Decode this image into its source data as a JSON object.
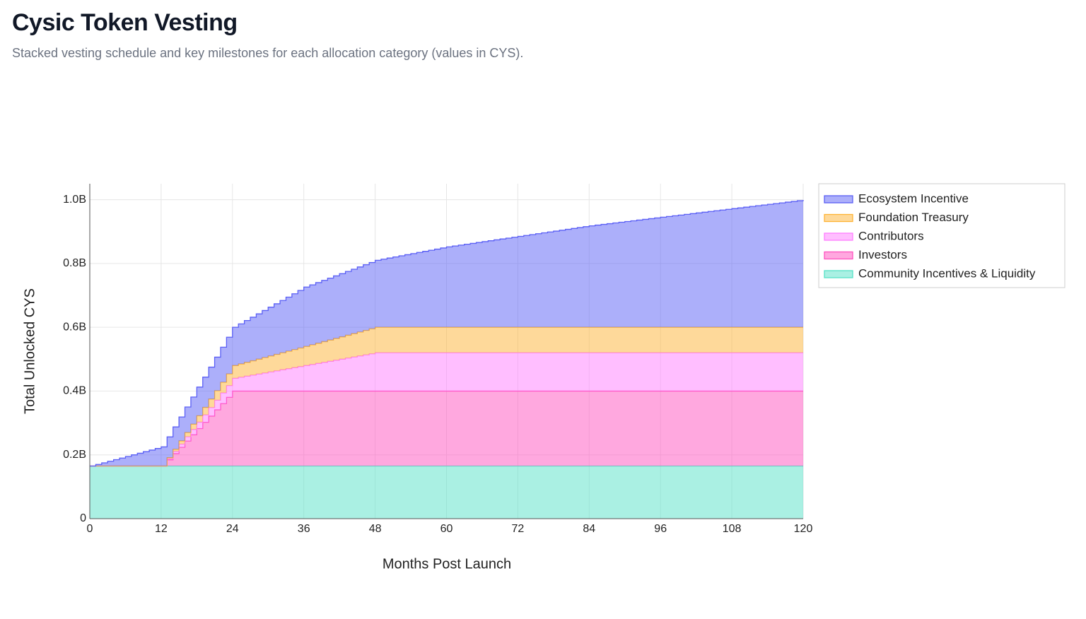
{
  "chart_data": {
    "type": "stacked_step_area",
    "title": "Cysic Token Vesting",
    "subtitle": "Stacked vesting schedule and key milestones for each allocation category (values in CYS).",
    "x_label": "Months Post Launch",
    "y_label": "Total Unlocked CYS",
    "xlim": [
      0,
      120
    ],
    "xticks": [
      0,
      12,
      24,
      36,
      48,
      60,
      72,
      84,
      96,
      108,
      120
    ],
    "ylim": [
      0,
      1050000000
    ],
    "yticks": [
      0,
      {
        "value": 200000000,
        "label": "0.2B"
      },
      {
        "value": 400000000,
        "label": "0.4B"
      },
      {
        "value": 600000000,
        "label": "0.6B"
      },
      {
        "value": 800000000,
        "label": "0.8B"
      },
      {
        "value": 1000000000,
        "label": "1.0B"
      }
    ],
    "grid": true,
    "legend_position": "right",
    "x": [
      0,
      1,
      2,
      3,
      4,
      5,
      6,
      7,
      8,
      9,
      10,
      11,
      12,
      13,
      14,
      15,
      16,
      17,
      18,
      19,
      20,
      21,
      22,
      23,
      24,
      25,
      26,
      27,
      28,
      29,
      30,
      31,
      32,
      33,
      34,
      35,
      36,
      37,
      38,
      39,
      40,
      41,
      42,
      43,
      44,
      45,
      46,
      47,
      48,
      49,
      50,
      51,
      52,
      53,
      54,
      55,
      56,
      57,
      58,
      59,
      60,
      61,
      62,
      63,
      64,
      65,
      66,
      67,
      68,
      69,
      70,
      71,
      72,
      73,
      74,
      75,
      76,
      77,
      78,
      79,
      80,
      81,
      82,
      83,
      84,
      85,
      86,
      87,
      88,
      89,
      90,
      91,
      92,
      93,
      94,
      95,
      96,
      97,
      98,
      99,
      100,
      101,
      102,
      103,
      104,
      105,
      106,
      107,
      108,
      109,
      110,
      111,
      112,
      113,
      114,
      115,
      116,
      117,
      118,
      119,
      120
    ],
    "series": [
      {
        "name": "Community Incentives & Liquidity",
        "color": "#55e1c7",
        "values": [
          165000000,
          165000000,
          165000000,
          165000000,
          165000000,
          165000000,
          165000000,
          165000000,
          165000000,
          165000000,
          165000000,
          165000000,
          165000000,
          165000000,
          165000000,
          165000000,
          165000000,
          165000000,
          165000000,
          165000000,
          165000000,
          165000000,
          165000000,
          165000000,
          165000000,
          165000000,
          165000000,
          165000000,
          165000000,
          165000000,
          165000000,
          165000000,
          165000000,
          165000000,
          165000000,
          165000000,
          165000000,
          165000000,
          165000000,
          165000000,
          165000000,
          165000000,
          165000000,
          165000000,
          165000000,
          165000000,
          165000000,
          165000000,
          165000000,
          165000000,
          165000000,
          165000000,
          165000000,
          165000000,
          165000000,
          165000000,
          165000000,
          165000000,
          165000000,
          165000000,
          165000000,
          165000000,
          165000000,
          165000000,
          165000000,
          165000000,
          165000000,
          165000000,
          165000000,
          165000000,
          165000000,
          165000000,
          165000000,
          165000000,
          165000000,
          165000000,
          165000000,
          165000000,
          165000000,
          165000000,
          165000000,
          165000000,
          165000000,
          165000000,
          165000000,
          165000000,
          165000000,
          165000000,
          165000000,
          165000000,
          165000000,
          165000000,
          165000000,
          165000000,
          165000000,
          165000000,
          165000000,
          165000000,
          165000000,
          165000000,
          165000000,
          165000000,
          165000000,
          165000000,
          165000000,
          165000000,
          165000000,
          165000000,
          165000000,
          165000000,
          165000000,
          165000000,
          165000000,
          165000000,
          165000000,
          165000000,
          165000000,
          165000000,
          165000000,
          165000000,
          165000000
        ]
      },
      {
        "name": "Investors",
        "color": "#ff51bf",
        "values": [
          0,
          0,
          0,
          0,
          0,
          0,
          0,
          0,
          0,
          0,
          0,
          0,
          0,
          19583333,
          39166667,
          58750000,
          78333333,
          97916667,
          117500000,
          137083333,
          156666667,
          176250000,
          195833333,
          215416667,
          235000000,
          235000000,
          235000000,
          235000000,
          235000000,
          235000000,
          235000000,
          235000000,
          235000000,
          235000000,
          235000000,
          235000000,
          235000000,
          235000000,
          235000000,
          235000000,
          235000000,
          235000000,
          235000000,
          235000000,
          235000000,
          235000000,
          235000000,
          235000000,
          235000000,
          235000000,
          235000000,
          235000000,
          235000000,
          235000000,
          235000000,
          235000000,
          235000000,
          235000000,
          235000000,
          235000000,
          235000000,
          235000000,
          235000000,
          235000000,
          235000000,
          235000000,
          235000000,
          235000000,
          235000000,
          235000000,
          235000000,
          235000000,
          235000000,
          235000000,
          235000000,
          235000000,
          235000000,
          235000000,
          235000000,
          235000000,
          235000000,
          235000000,
          235000000,
          235000000,
          235000000,
          235000000,
          235000000,
          235000000,
          235000000,
          235000000,
          235000000,
          235000000,
          235000000,
          235000000,
          235000000,
          235000000,
          235000000,
          235000000,
          235000000,
          235000000,
          235000000,
          235000000,
          235000000,
          235000000,
          235000000,
          235000000,
          235000000,
          235000000,
          235000000,
          235000000,
          235000000,
          235000000,
          235000000,
          235000000,
          235000000,
          235000000,
          235000000,
          235000000,
          235000000,
          235000000,
          235000000
        ]
      },
      {
        "name": "Contributors",
        "color": "#ff7dff",
        "values": [
          0,
          0,
          0,
          0,
          0,
          0,
          0,
          0,
          0,
          0,
          0,
          0,
          0,
          3333333,
          6666667,
          10000000,
          13333333,
          16666667,
          20000000,
          23333333,
          26666667,
          30000000,
          33333333,
          36666667,
          40000000,
          43333333,
          46666667,
          50000000,
          53333333,
          56666667,
          60000000,
          63333333,
          66666667,
          70000000,
          73333333,
          76666667,
          80000000,
          83333333,
          86666667,
          90000000,
          93333333,
          96666667,
          100000000,
          103333333,
          106666667,
          110000000,
          113333333,
          116666667,
          120000000,
          120000000,
          120000000,
          120000000,
          120000000,
          120000000,
          120000000,
          120000000,
          120000000,
          120000000,
          120000000,
          120000000,
          120000000,
          120000000,
          120000000,
          120000000,
          120000000,
          120000000,
          120000000,
          120000000,
          120000000,
          120000000,
          120000000,
          120000000,
          120000000,
          120000000,
          120000000,
          120000000,
          120000000,
          120000000,
          120000000,
          120000000,
          120000000,
          120000000,
          120000000,
          120000000,
          120000000,
          120000000,
          120000000,
          120000000,
          120000000,
          120000000,
          120000000,
          120000000,
          120000000,
          120000000,
          120000000,
          120000000,
          120000000,
          120000000,
          120000000,
          120000000,
          120000000,
          120000000,
          120000000,
          120000000,
          120000000,
          120000000,
          120000000,
          120000000,
          120000000,
          120000000,
          120000000,
          120000000,
          120000000,
          120000000,
          120000000,
          120000000,
          120000000,
          120000000,
          120000000,
          120000000,
          120000000
        ]
      },
      {
        "name": "Foundation Treasury",
        "color": "#fdb335",
        "values": [
          0,
          0,
          0,
          0,
          0,
          0,
          0,
          0,
          0,
          0,
          0,
          0,
          0,
          3333333,
          6666667,
          10000000,
          13333333,
          16666667,
          20000000,
          23333333,
          26666667,
          30000000,
          33333333,
          36666667,
          40000000,
          41666667,
          43333333,
          45000000,
          46666667,
          48333333,
          50000000,
          51666667,
          53333333,
          55000000,
          56666667,
          58333333,
          60000000,
          61666667,
          63333333,
          65000000,
          66666667,
          68333333,
          70000000,
          71666667,
          73333333,
          75000000,
          76666667,
          78333333,
          80000000,
          80000000,
          80000000,
          80000000,
          80000000,
          80000000,
          80000000,
          80000000,
          80000000,
          80000000,
          80000000,
          80000000,
          80000000,
          80000000,
          80000000,
          80000000,
          80000000,
          80000000,
          80000000,
          80000000,
          80000000,
          80000000,
          80000000,
          80000000,
          80000000,
          80000000,
          80000000,
          80000000,
          80000000,
          80000000,
          80000000,
          80000000,
          80000000,
          80000000,
          80000000,
          80000000,
          80000000,
          80000000,
          80000000,
          80000000,
          80000000,
          80000000,
          80000000,
          80000000,
          80000000,
          80000000,
          80000000,
          80000000,
          80000000,
          80000000,
          80000000,
          80000000,
          80000000,
          80000000,
          80000000,
          80000000,
          80000000,
          80000000,
          80000000,
          80000000,
          80000000,
          80000000,
          80000000,
          80000000,
          80000000,
          80000000,
          80000000,
          80000000,
          80000000,
          80000000,
          80000000,
          80000000,
          80000000
        ]
      },
      {
        "name": "Ecosystem Incentive",
        "color": "#5a5ff5",
        "values": [
          0,
          5000000,
          10000000,
          15000000,
          20000000,
          25000000,
          30000000,
          35000000,
          40000000,
          45000000,
          50000000,
          55000000,
          60000000,
          65000000,
          70000000,
          75000000,
          80000000,
          85000000,
          90000000,
          95000000,
          100000000,
          105000000,
          110000000,
          115000000,
          120000000,
          125500000,
          131000000,
          136500000,
          142000000,
          147500000,
          153000000,
          158500000,
          164000000,
          169500000,
          175000000,
          180500000,
          186000000,
          188000000,
          190000000,
          192000000,
          194000000,
          196000000,
          198000000,
          200000000,
          202000000,
          204000000,
          206000000,
          208000000,
          210000000,
          213500000,
          217000000,
          220500000,
          224000000,
          227500000,
          231000000,
          234500000,
          238000000,
          241500000,
          245000000,
          248500000,
          252000000,
          254750000,
          257500000,
          260250000,
          263000000,
          265750000,
          268500000,
          271250000,
          274000000,
          276750000,
          279500000,
          282250000,
          285000000,
          287750000,
          290500000,
          293250000,
          296000000,
          298750000,
          301500000,
          304250000,
          307000000,
          309750000,
          312500000,
          315250000,
          318000000,
          320250000,
          322500000,
          324750000,
          327000000,
          329250000,
          331500000,
          333750000,
          336000000,
          338250000,
          340500000,
          342750000,
          345000000,
          347250000,
          349500000,
          351750000,
          354000000,
          356250000,
          358500000,
          360750000,
          363000000,
          365250000,
          367500000,
          369750000,
          372000000,
          374250000,
          376500000,
          378750000,
          381000000,
          383250000,
          385500000,
          387750000,
          390000000,
          392250000,
          394500000,
          396750000,
          399000000
        ]
      }
    ]
  }
}
